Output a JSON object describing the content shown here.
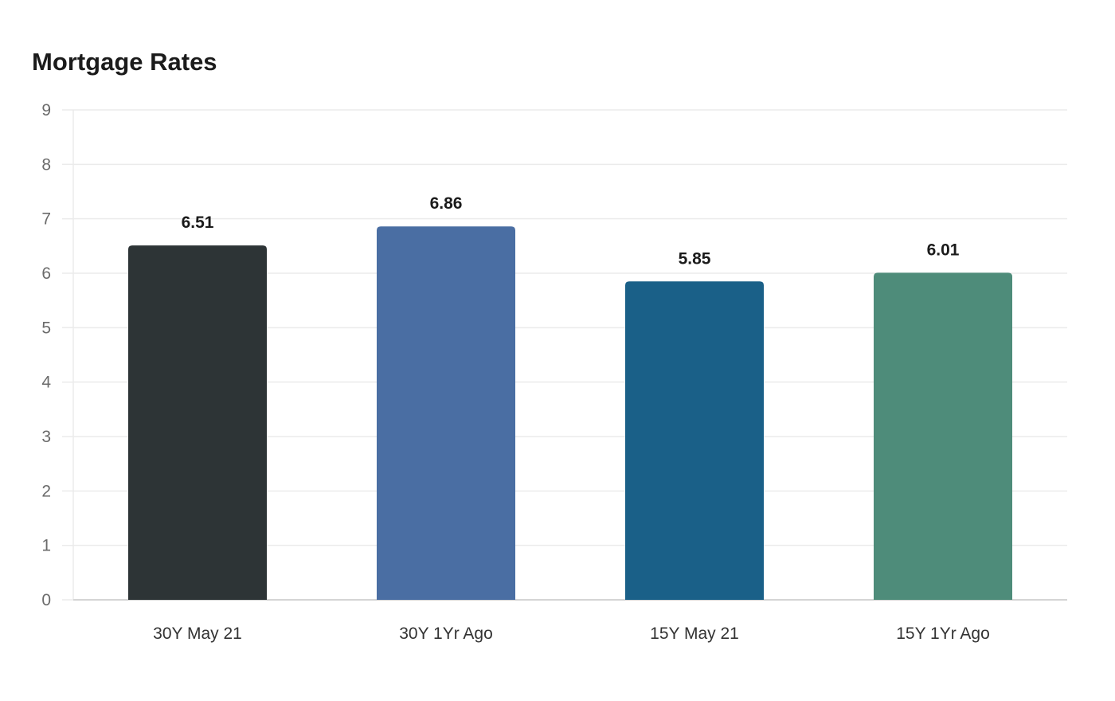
{
  "chart_data": {
    "type": "bar",
    "title": "Mortgage Rates",
    "categories": [
      "30Y May 21",
      "30Y 1Yr Ago",
      "15Y May 21",
      "15Y 1Yr Ago"
    ],
    "values": [
      6.51,
      6.86,
      5.85,
      6.01
    ],
    "colors": [
      "#2d3436",
      "#4a6ea3",
      "#1a6088",
      "#4e8c7a"
    ],
    "ylim": [
      0,
      9
    ],
    "yticks": [
      0,
      1,
      2,
      3,
      4,
      5,
      6,
      7,
      8,
      9
    ],
    "xlabel": "",
    "ylabel": "",
    "grid": true,
    "grid_color": "#ebebeb",
    "axis_color": "#d5d5d5",
    "data_labels": [
      "6.51",
      "6.86",
      "5.85",
      "6.01"
    ],
    "legend": "none"
  }
}
